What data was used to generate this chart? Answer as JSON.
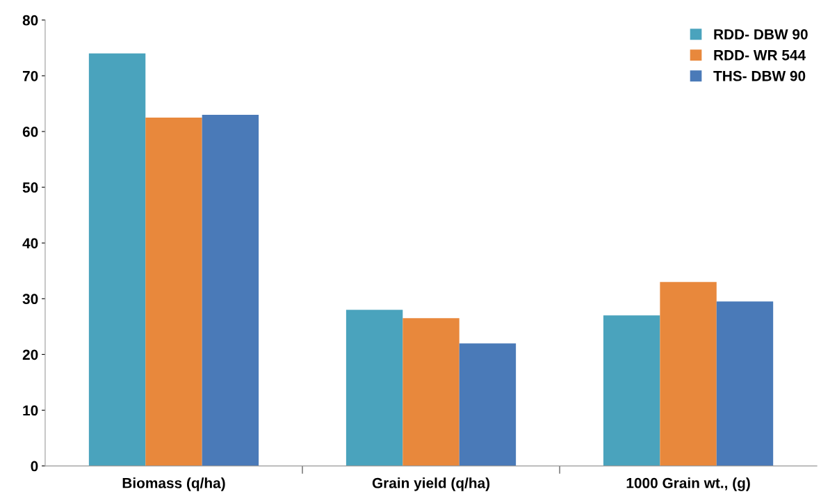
{
  "chart_data": {
    "type": "bar",
    "categories": [
      "Biomass (q/ha)",
      "Grain yield (q/ha)",
      "1000 Grain wt., (g)"
    ],
    "series": [
      {
        "name": "RDD- DBW 90",
        "color": "#4aa3bd",
        "values": [
          74,
          28,
          27
        ]
      },
      {
        "name": "RDD- WR 544",
        "color": "#e8883c",
        "values": [
          62.5,
          26.5,
          33
        ]
      },
      {
        "name": "THS- DBW 90",
        "color": "#4a7ab8",
        "values": [
          63,
          22,
          29.5
        ]
      }
    ],
    "ylim": [
      0,
      80
    ],
    "yticks": [
      0,
      10,
      20,
      30,
      40,
      50,
      60,
      70,
      80
    ],
    "grid": false,
    "legend": "top right"
  }
}
